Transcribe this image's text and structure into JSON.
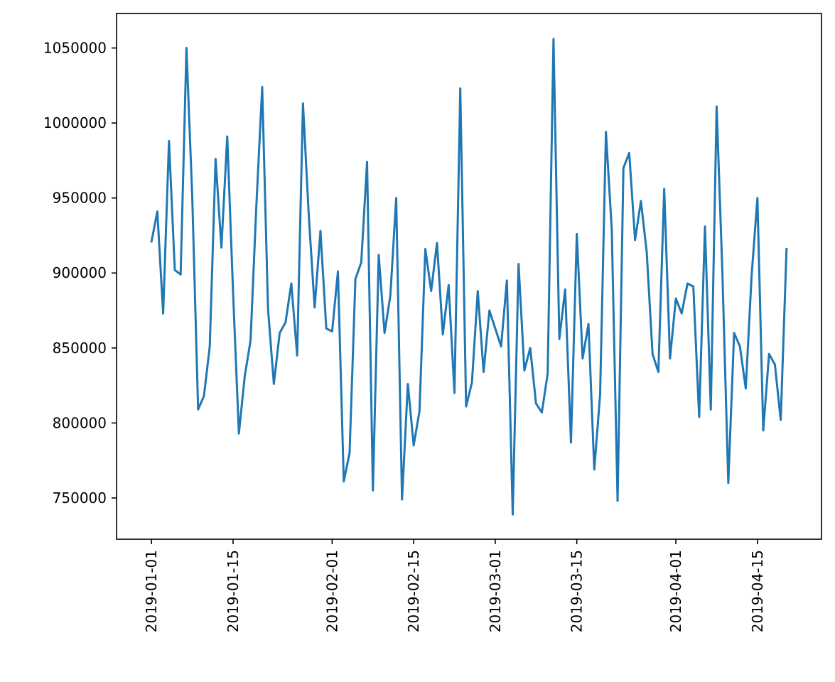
{
  "chart_data": {
    "type": "line",
    "title": "",
    "xlabel": "",
    "ylabel": "",
    "grid": false,
    "xlim": [
      "2018-12-26",
      "2019-04-26"
    ],
    "ylim": [
      722500,
      1073000
    ],
    "x_ticks": [
      "2019-01-01",
      "2019-01-15",
      "2019-02-01",
      "2019-02-15",
      "2019-03-01",
      "2019-03-15",
      "2019-04-01",
      "2019-04-15"
    ],
    "y_ticks": [
      750000,
      800000,
      850000,
      900000,
      950000,
      1000000,
      1050000
    ],
    "y_tick_labels": [
      "750000",
      "800000",
      "850000",
      "900000",
      "950000",
      "1000000",
      "1050000"
    ],
    "series": [
      {
        "color": "#1f77b4",
        "x": [
          "2019-01-01",
          "2019-01-02",
          "2019-01-03",
          "2019-01-04",
          "2019-01-05",
          "2019-01-06",
          "2019-01-07",
          "2019-01-08",
          "2019-01-09",
          "2019-01-10",
          "2019-01-11",
          "2019-01-12",
          "2019-01-13",
          "2019-01-14",
          "2019-01-15",
          "2019-01-16",
          "2019-01-17",
          "2019-01-18",
          "2019-01-19",
          "2019-01-20",
          "2019-01-21",
          "2019-01-22",
          "2019-01-23",
          "2019-01-24",
          "2019-01-25",
          "2019-01-26",
          "2019-01-27",
          "2019-01-28",
          "2019-01-29",
          "2019-01-30",
          "2019-01-31",
          "2019-02-01",
          "2019-02-02",
          "2019-02-03",
          "2019-02-04",
          "2019-02-05",
          "2019-02-06",
          "2019-02-07",
          "2019-02-08",
          "2019-02-09",
          "2019-02-10",
          "2019-02-11",
          "2019-02-12",
          "2019-02-13",
          "2019-02-14",
          "2019-02-15",
          "2019-02-16",
          "2019-02-17",
          "2019-02-18",
          "2019-02-19",
          "2019-02-20",
          "2019-02-21",
          "2019-02-22",
          "2019-02-23",
          "2019-02-24",
          "2019-02-25",
          "2019-02-26",
          "2019-02-27",
          "2019-02-28",
          "2019-03-01",
          "2019-03-02",
          "2019-03-03",
          "2019-03-04",
          "2019-03-05",
          "2019-03-06",
          "2019-03-07",
          "2019-03-08",
          "2019-03-09",
          "2019-03-10",
          "2019-03-11",
          "2019-03-12",
          "2019-03-13",
          "2019-03-14",
          "2019-03-15",
          "2019-03-16",
          "2019-03-17",
          "2019-03-18",
          "2019-03-19",
          "2019-03-20",
          "2019-03-21",
          "2019-03-22",
          "2019-03-23",
          "2019-03-24",
          "2019-03-25",
          "2019-03-26",
          "2019-03-27",
          "2019-03-28",
          "2019-03-29",
          "2019-03-30",
          "2019-03-31",
          "2019-04-01",
          "2019-04-02",
          "2019-04-03",
          "2019-04-04",
          "2019-04-05",
          "2019-04-06",
          "2019-04-07",
          "2019-04-08",
          "2019-04-09",
          "2019-04-10",
          "2019-04-11",
          "2019-04-12",
          "2019-04-13",
          "2019-04-14",
          "2019-04-15",
          "2019-04-16",
          "2019-04-17",
          "2019-04-18",
          "2019-04-19",
          "2019-04-20"
        ],
        "y": [
          921000,
          941000,
          873000,
          988000,
          902000,
          899000,
          1050000,
          950000,
          809000,
          818000,
          851000,
          976000,
          917000,
          991000,
          887000,
          793000,
          831000,
          855000,
          945000,
          1024000,
          876000,
          826000,
          860000,
          867000,
          893000,
          845000,
          1013000,
          938000,
          877000,
          928000,
          863000,
          861000,
          901000,
          761000,
          780000,
          896000,
          907000,
          974000,
          755000,
          912000,
          860000,
          885000,
          950000,
          749000,
          826000,
          785000,
          808000,
          916000,
          888000,
          920000,
          859000,
          892000,
          820000,
          1023000,
          811000,
          827000,
          888000,
          834000,
          875000,
          863000,
          851000,
          895000,
          739000,
          906000,
          835000,
          850000,
          813000,
          807000,
          833000,
          1056000,
          856000,
          889000,
          787000,
          926000,
          843000,
          866000,
          769000,
          819000,
          994000,
          929000,
          748000,
          970000,
          980000,
          922000,
          948000,
          914000,
          846000,
          834000,
          956000,
          843000,
          883000,
          873000,
          893000,
          891000,
          804000,
          931000,
          809000,
          1011000,
          899000,
          760000,
          860000,
          851000,
          823000,
          898000,
          950000,
          795000,
          846000,
          839000,
          802000,
          916000
        ]
      }
    ]
  }
}
